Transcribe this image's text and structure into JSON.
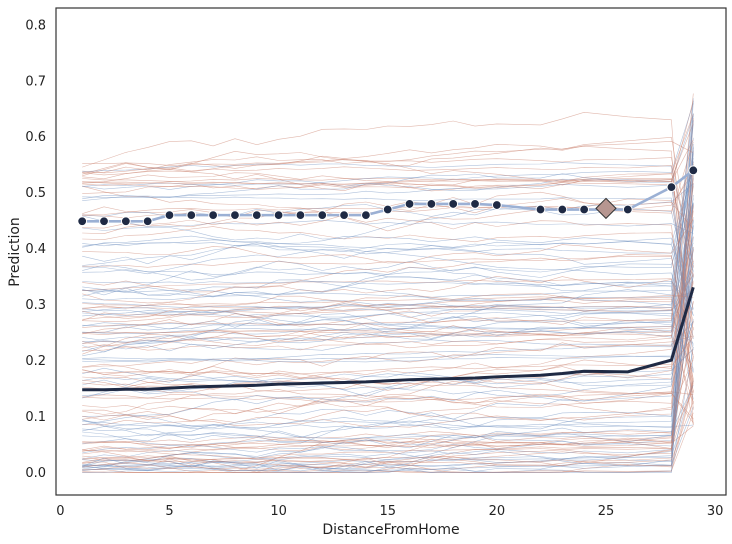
{
  "chart_data": {
    "type": "line",
    "title": "",
    "xlabel": "DistanceFromHome",
    "ylabel": "Prediction",
    "xlim": [
      -0.2,
      30.5
    ],
    "ylim": [
      -0.04,
      0.83
    ],
    "xticks": [
      0,
      5,
      10,
      15,
      20,
      25,
      30
    ],
    "yticks": [
      0.0,
      0.1,
      0.2,
      0.3,
      0.4,
      0.5,
      0.6,
      0.7,
      0.8
    ],
    "grid": false,
    "legend": "none",
    "x": [
      1,
      2,
      3,
      4,
      5,
      6,
      7,
      8,
      9,
      10,
      11,
      12,
      13,
      14,
      15,
      16,
      17,
      18,
      19,
      20,
      22,
      23,
      24,
      26,
      28,
      29
    ],
    "series": [
      {
        "role": "average",
        "values": [
          0.148,
          0.148,
          0.149,
          0.149,
          0.151,
          0.153,
          0.154,
          0.155,
          0.156,
          0.158,
          0.159,
          0.16,
          0.161,
          0.162,
          0.164,
          0.166,
          0.167,
          0.168,
          0.169,
          0.171,
          0.174,
          0.177,
          0.181,
          0.18,
          0.201,
          0.331
        ]
      },
      {
        "role": "highlighted-instance",
        "values": [
          0.449,
          0.449,
          0.449,
          0.449,
          0.46,
          0.46,
          0.46,
          0.46,
          0.46,
          0.46,
          0.46,
          0.46,
          0.46,
          0.46,
          0.47,
          0.48,
          0.48,
          0.48,
          0.48,
          0.478,
          0.47,
          0.47,
          0.47,
          0.47,
          0.51,
          0.54
        ]
      }
    ],
    "marker": {
      "x": 25,
      "y": 0.472
    },
    "colors": {
      "average": "#1f2a44",
      "highlight": "#9bb0d4",
      "dot": "#1f2a44",
      "marker_fill": "#b79690",
      "blue_lines": "#6f8fbf",
      "red_lines": "#c97d6a"
    }
  }
}
